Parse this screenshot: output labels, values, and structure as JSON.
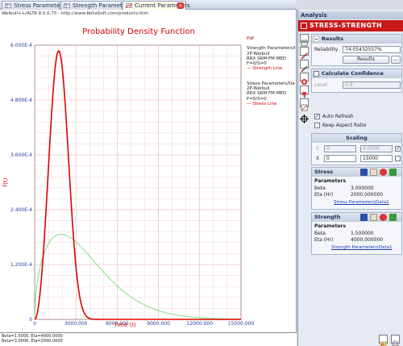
{
  "tabs": [
    {
      "label": "Stress Parameters",
      "icon": "table-icon",
      "active": false
    },
    {
      "label": "Strength Parameters",
      "icon": "table-icon",
      "active": false
    },
    {
      "label": "Current Parameters",
      "icon": "chart-icon",
      "active": true
    }
  ],
  "chart_window": {
    "url_text": "Weibull++/ALTA 8.0.0.70 - http://www.ReliaSoft.com/products.htm"
  },
  "legend": {
    "header": "Pdf",
    "strength_block": [
      "Strength Parameters/Data1",
      "2P-Weibull",
      "RRX SRM FM MED",
      "F=0/S=0"
    ],
    "strength_line": "Strength Line",
    "stress_block": [
      "Stress Parameters/Data1",
      "2P-Weibull",
      "RRX SRM FM MED",
      "F=0/S=0"
    ],
    "stress_line": "Stress Line"
  },
  "status_lines": [
    "Beta=1.5000, Eta=4000.0000",
    "Beta=3.0000, Eta=2000.0000"
  ],
  "chart_data": {
    "type": "line",
    "title": "Probability Density Function",
    "xlabel": "Time (t)",
    "ylabel": "f(t)",
    "xlim": [
      0,
      15000
    ],
    "ylim": [
      0,
      0.0006
    ],
    "x_ticks": [
      0,
      3000,
      6000,
      9000,
      12000,
      15000
    ],
    "x_tick_labels": [
      "0",
      "3000.000",
      "6000.000",
      "9000.000",
      "12000.000",
      "15000.000"
    ],
    "y_ticks": [
      0,
      0.00012,
      0.00024,
      0.00036,
      0.00048,
      0.0006
    ],
    "y_tick_labels": [
      "0",
      "1.200E-4",
      "2.400E-4",
      "3.600E-4",
      "4.800E-4",
      "6.000E-4"
    ],
    "grid": true,
    "legend_position": "right",
    "series": [
      {
        "name": "Stress Line",
        "color": "#e00000",
        "distribution": "weibull",
        "beta": 3.0,
        "eta": 2000.0
      },
      {
        "name": "Strength Line",
        "color": "#7ee07e",
        "distribution": "weibull",
        "beta": 1.5,
        "eta": 4000.0
      }
    ]
  },
  "panel": {
    "title": "Analysis",
    "banner": "Stress-Strength",
    "results": {
      "header": "Results",
      "reliability_label": "Reliability",
      "reliability_value": "74.05432557%",
      "results_button": "Results",
      "more_button": "..."
    },
    "confidence": {
      "header": "Calculate Confidence",
      "level_label": "Level",
      "level_value": "0.9"
    },
    "options": {
      "auto_refresh": "Auto Refresh",
      "keep_aspect": "Keep Aspect Ratio"
    },
    "scaling": {
      "header": "Scaling",
      "y_label": "Y",
      "y_min": "0",
      "y_max": "0.0006",
      "x_label": "X",
      "x_min": "0",
      "x_max": "15000"
    },
    "stress": {
      "header": "Stress",
      "params_label": "Parameters",
      "beta_label": "Beta",
      "beta_value": "3.000000",
      "eta_label": "Eta (Hr)",
      "eta_value": "2000.000000",
      "link": "Stress Parameters\\Data1"
    },
    "strength": {
      "header": "Strength",
      "params_label": "Parameters",
      "beta_label": "Beta",
      "beta_value": "1.500000",
      "eta_label": "Eta (Hr)",
      "eta_value": "4000.000000",
      "link": "Strength Parameters\\Data1"
    }
  }
}
